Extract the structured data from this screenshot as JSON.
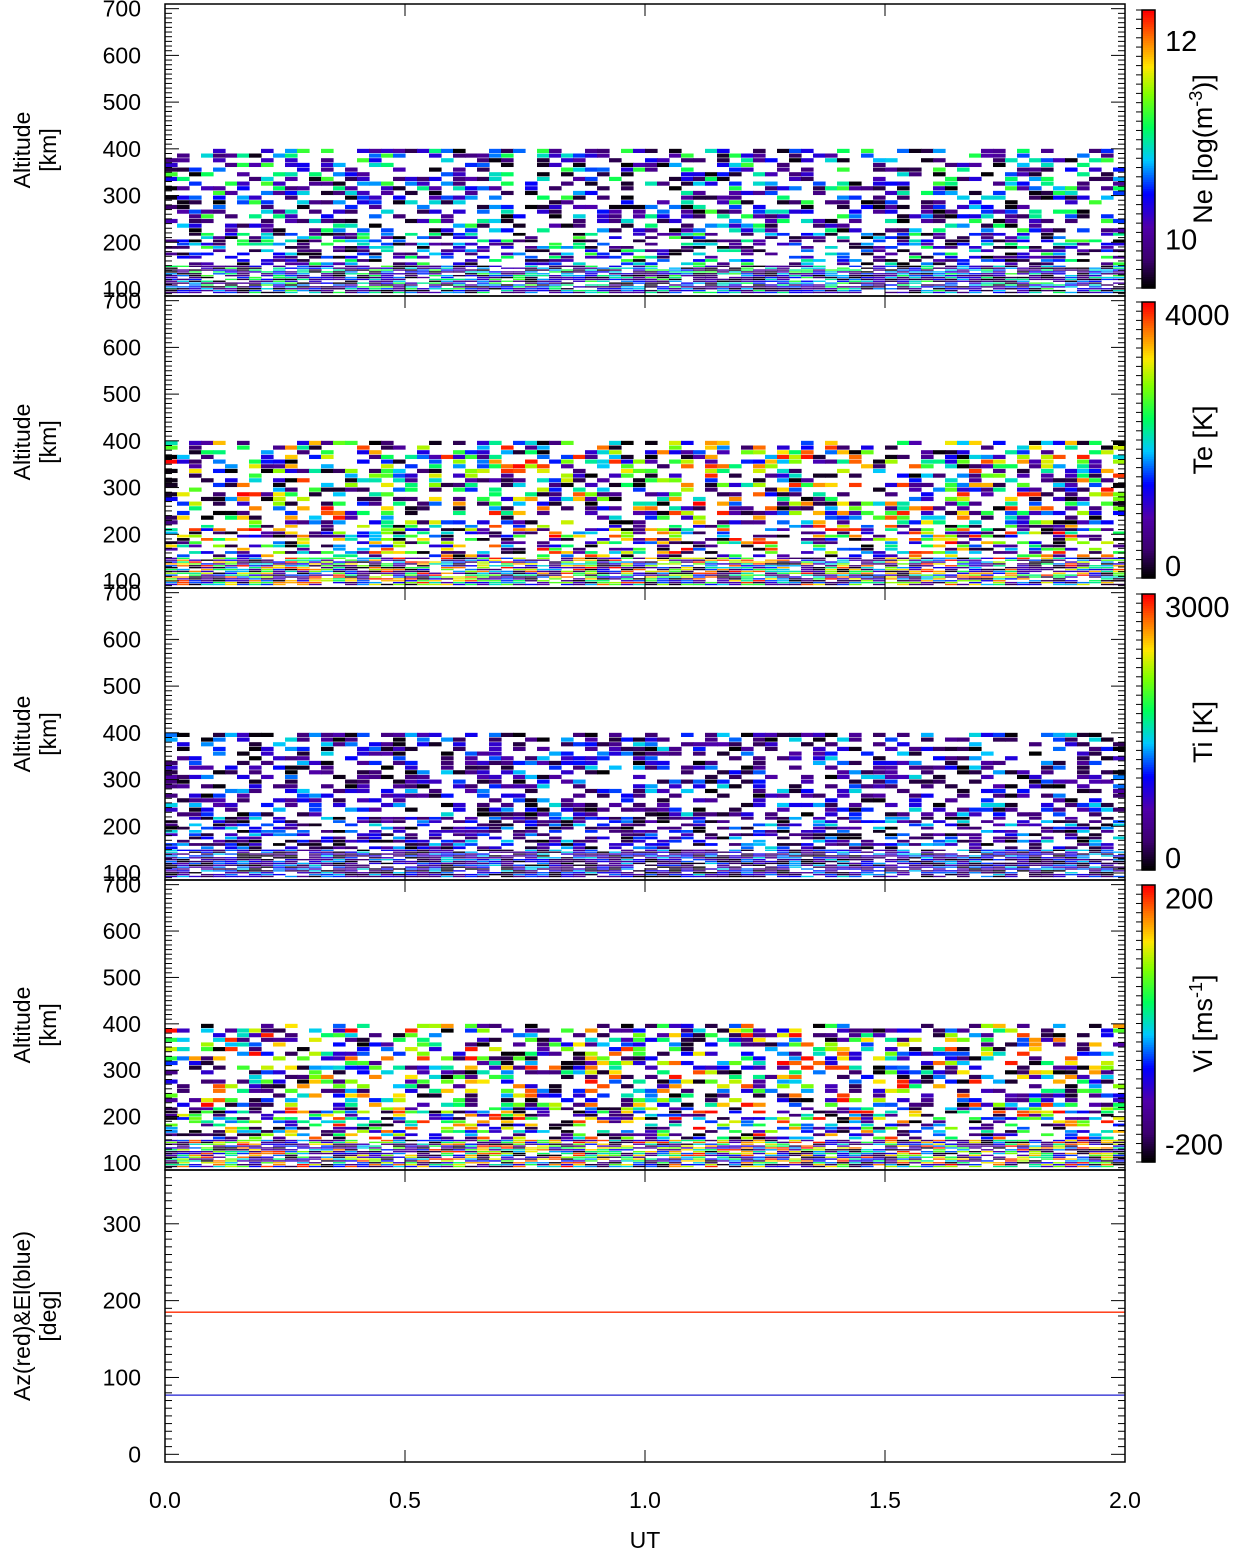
{
  "chart_data": [
    {
      "type": "heatmap",
      "ylabel": [
        "Altitude",
        "[km]"
      ],
      "ylim": [
        85,
        710
      ],
      "xlim": [
        0.0,
        2.0
      ],
      "yticks": [
        100,
        200,
        300,
        400,
        500,
        600,
        700
      ],
      "colorbar": {
        "title": "Ne [log(m",
        "title_sup": "-3",
        "title_end": ")]",
        "ticks": [
          "12",
          "10"
        ],
        "range": [
          9.5,
          12.3
        ],
        "tick_values": [
          12,
          10
        ]
      },
      "data_altitude_range": [
        90,
        400
      ],
      "data_range": [
        9.5,
        11.3
      ],
      "seed": 11
    },
    {
      "type": "heatmap",
      "ylabel": [
        "Altitude",
        "[km]"
      ],
      "ylim": [
        85,
        710
      ],
      "xlim": [
        0.0,
        2.0
      ],
      "yticks": [
        100,
        200,
        300,
        400,
        500,
        600,
        700
      ],
      "colorbar": {
        "title": "Te [K]",
        "title_sup": "",
        "title_end": "",
        "ticks": [
          "4000",
          "0"
        ],
        "range": [
          -200,
          4000
        ],
        "tick_values": [
          4000,
          0
        ]
      },
      "data_altitude_range": [
        90,
        400
      ],
      "data_range": [
        -200,
        4000
      ],
      "seed": 23
    },
    {
      "type": "heatmap",
      "ylabel": [
        "Altitude",
        "[km]"
      ],
      "ylim": [
        85,
        710
      ],
      "xlim": [
        0.0,
        2.0
      ],
      "yticks": [
        100,
        200,
        300,
        400,
        500,
        600,
        700
      ],
      "colorbar": {
        "title": "Ti [K]",
        "title_sup": "",
        "title_end": "",
        "ticks": [
          "3000",
          "0"
        ],
        "range": [
          -150,
          3000
        ],
        "tick_values": [
          3000,
          0
        ]
      },
      "data_altitude_range": [
        90,
        400
      ],
      "data_range": [
        -150,
        1400
      ],
      "seed": 37
    },
    {
      "type": "heatmap",
      "ylabel": [
        "Altitude",
        "[km]"
      ],
      "ylim": [
        85,
        710
      ],
      "xlim": [
        0.0,
        2.0
      ],
      "yticks": [
        100,
        200,
        300,
        400,
        500,
        600,
        700
      ],
      "colorbar": {
        "title": "Vi [ms",
        "title_sup": "-1",
        "title_end": "]",
        "ticks": [
          "200",
          "-200"
        ],
        "range": [
          -230,
          220
        ],
        "tick_values": [
          200,
          -200
        ]
      },
      "data_altitude_range": [
        90,
        400
      ],
      "data_range": [
        -230,
        220
      ],
      "seed": 53
    },
    {
      "type": "line",
      "ylabel": [
        "Az(red)&El(blue)",
        "[deg]"
      ],
      "ylim": [
        -10,
        370
      ],
      "xlim": [
        0.0,
        2.0
      ],
      "yticks": [
        0,
        100,
        200,
        300
      ],
      "xlabel": "UT",
      "xticks": [
        "0.0",
        "0.5",
        "1.0",
        "1.5",
        "2.0"
      ],
      "xtick_values": [
        0.0,
        0.5,
        1.0,
        1.5,
        2.0
      ],
      "series": [
        {
          "name": "Az(red)",
          "color": "#ff2a00",
          "x": [
            0.0,
            2.0
          ],
          "y": [
            185,
            185
          ]
        },
        {
          "name": "El(blue)",
          "color": "#1f1fd0",
          "x": [
            0.0,
            2.0
          ],
          "y": [
            77,
            77
          ]
        }
      ]
    }
  ],
  "colors": {
    "frame": "#000000",
    "background": "#ffffff"
  }
}
